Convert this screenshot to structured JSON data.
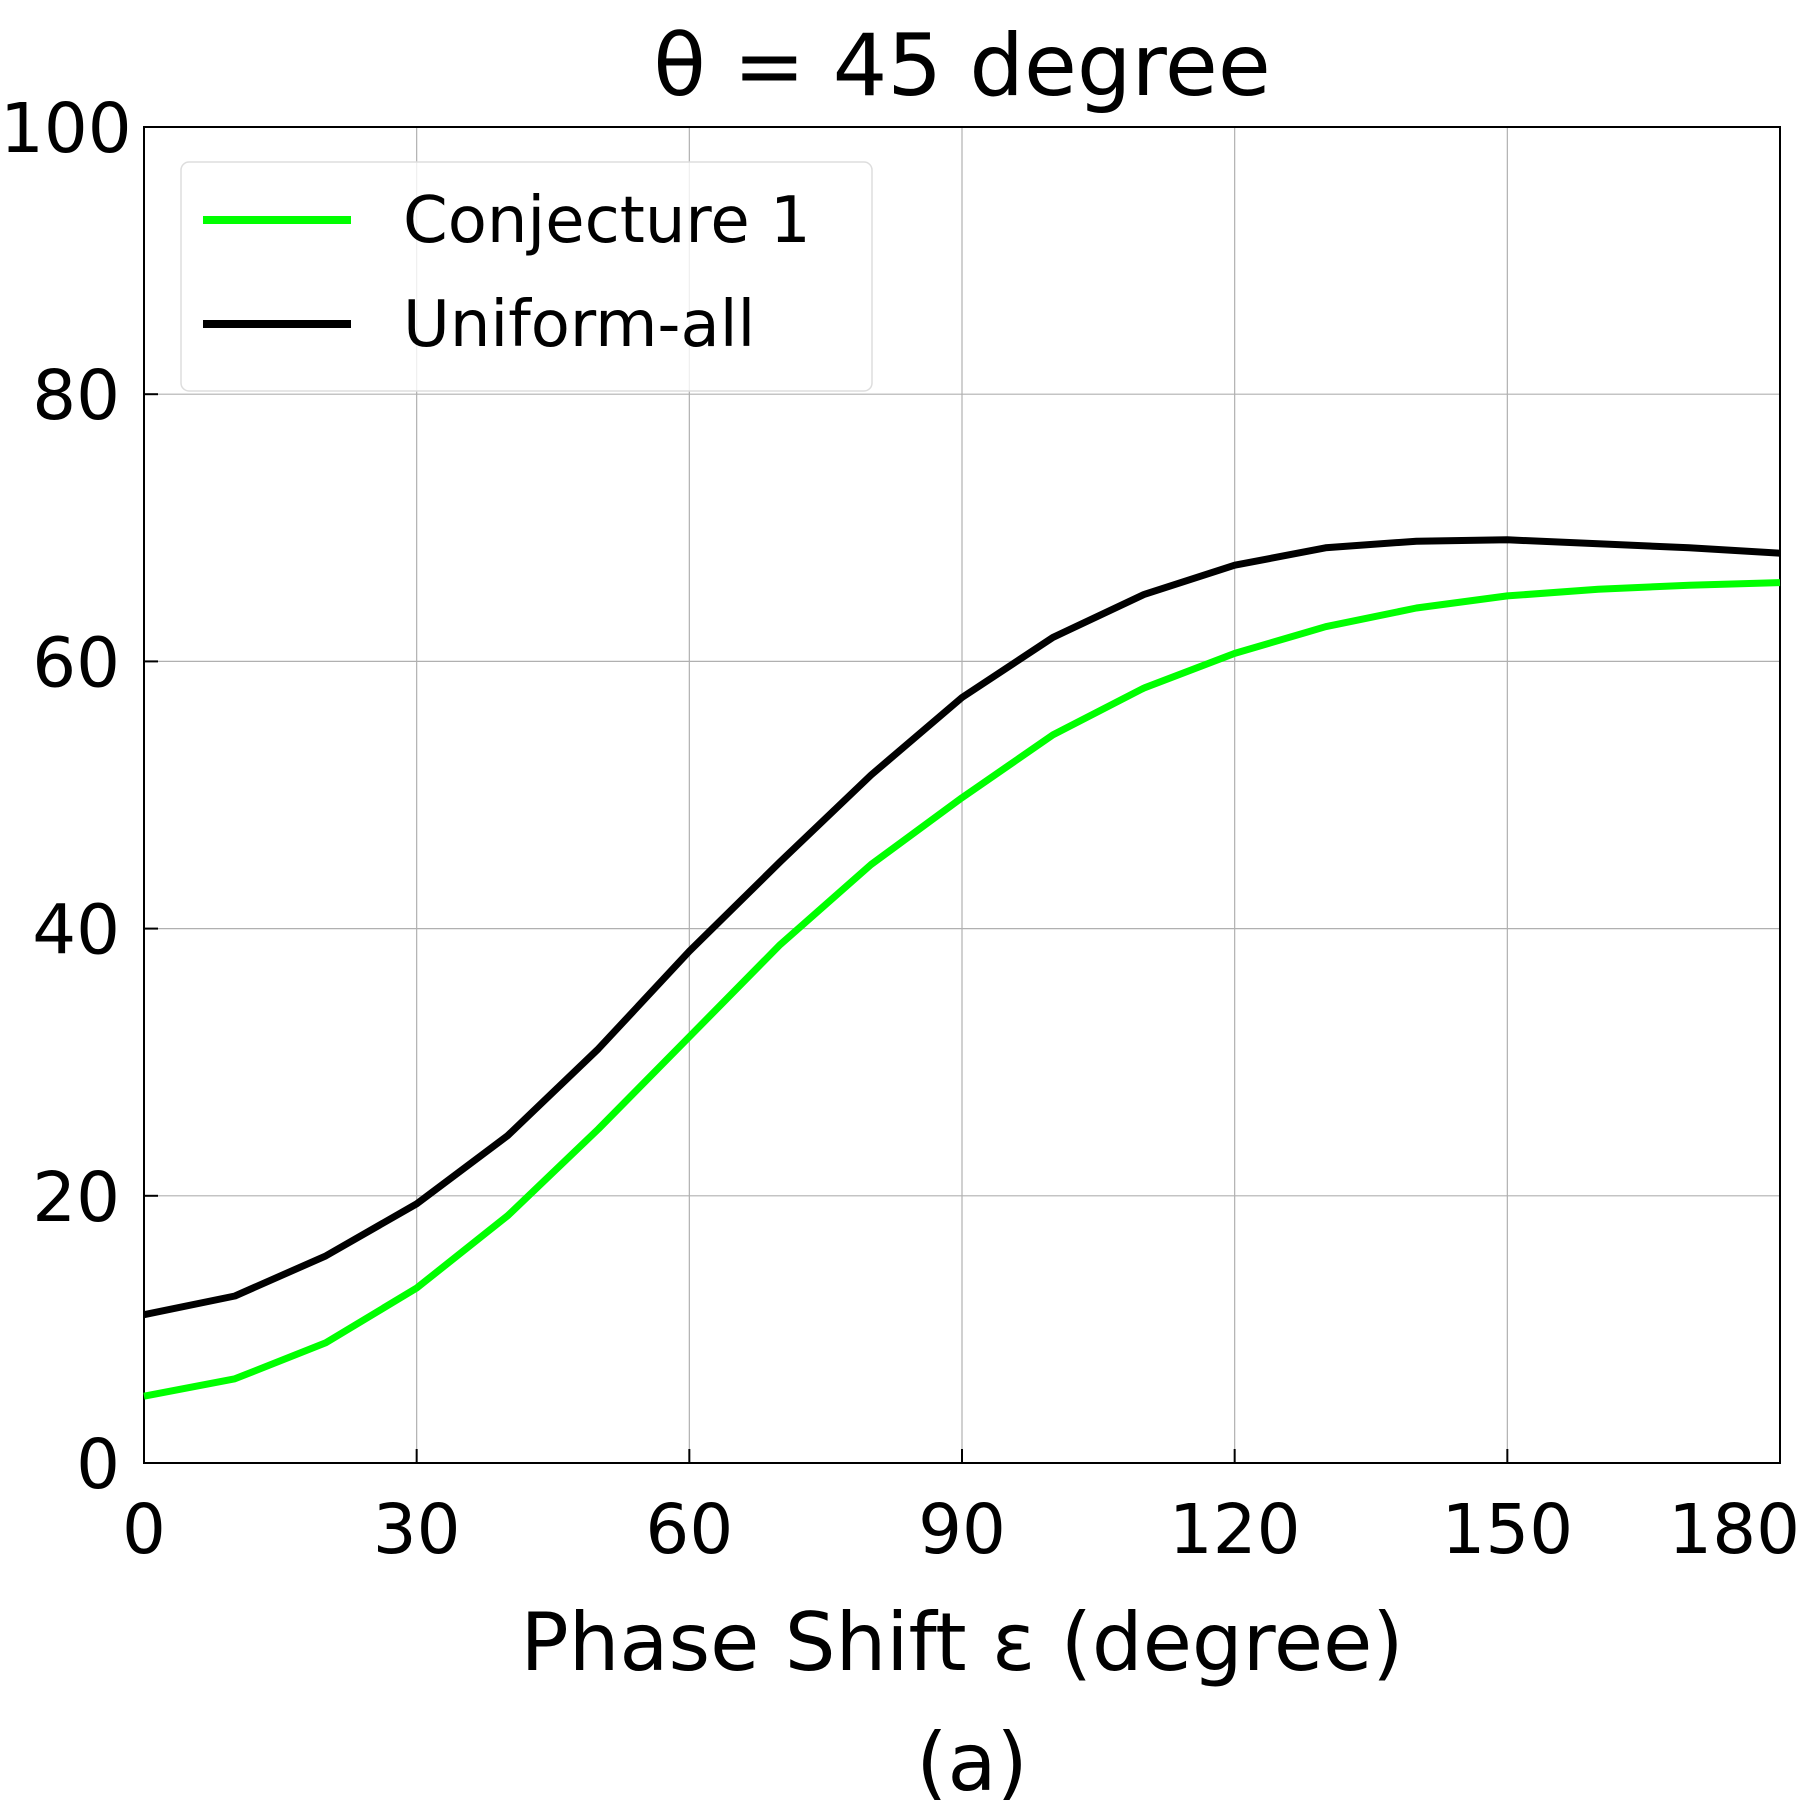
{
  "chart_data": {
    "type": "line",
    "title": "θ = 45 degree",
    "x_label": "Phase Shift ε (degree)",
    "caption": "(a)",
    "x": [
      0,
      10,
      20,
      30,
      40,
      50,
      60,
      70,
      80,
      90,
      100,
      110,
      120,
      130,
      140,
      150,
      160,
      170,
      180
    ],
    "series": [
      {
        "name": "Conjecture 1",
        "color": "#00ff00",
        "values": [
          5.0,
          6.3,
          9.0,
          13.1,
          18.5,
          25.0,
          31.9,
          38.8,
          44.8,
          49.8,
          54.5,
          58.0,
          60.6,
          62.6,
          64.0,
          64.9,
          65.4,
          65.7,
          65.9
        ]
      },
      {
        "name": "Uniform-all",
        "color": "#000000",
        "values": [
          11.1,
          12.5,
          15.5,
          19.4,
          24.5,
          31.0,
          38.3,
          45.0,
          51.5,
          57.3,
          61.8,
          65.0,
          67.2,
          68.5,
          69.0,
          69.1,
          68.8,
          68.5,
          68.1
        ]
      }
    ],
    "xlim": [
      0,
      180
    ],
    "xticks": [
      0,
      30,
      60,
      90,
      120,
      150,
      180
    ],
    "ylim": [
      0,
      100
    ],
    "yticks": [
      0,
      20,
      40,
      60,
      80,
      100
    ],
    "grid": true,
    "legend": "upper left"
  }
}
